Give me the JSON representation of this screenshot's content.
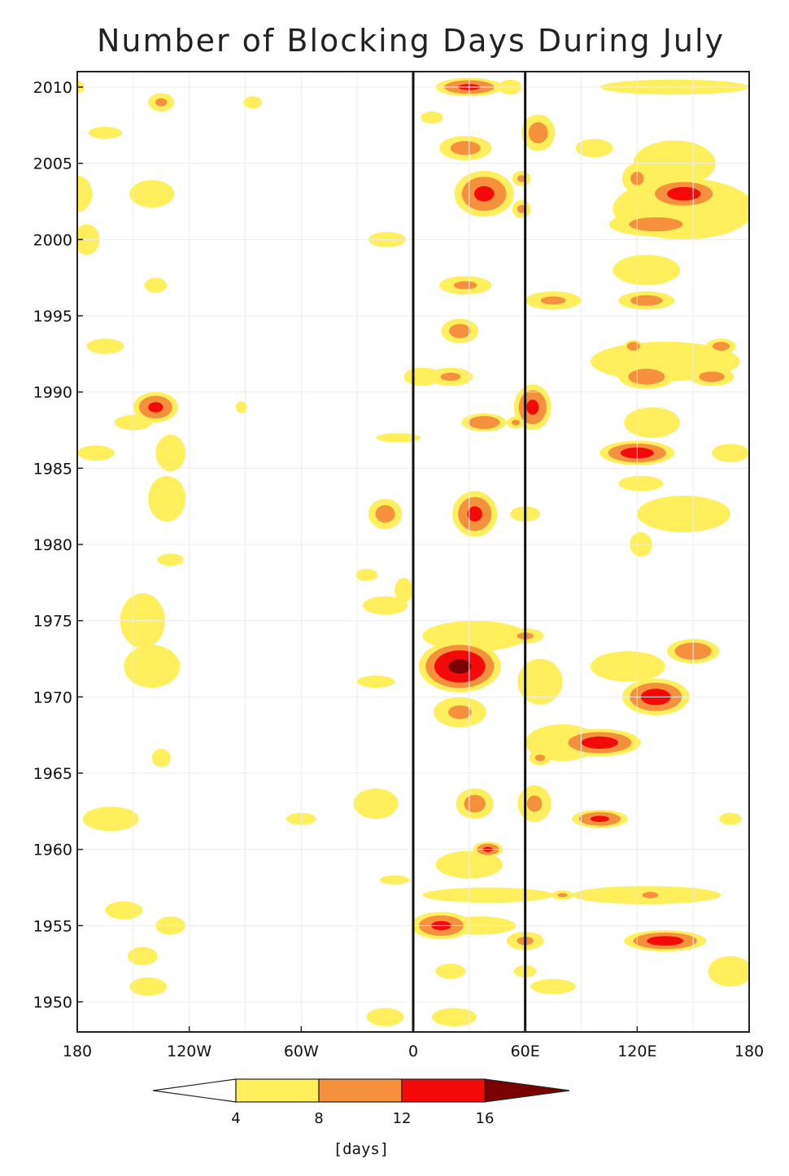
{
  "chart_data": {
    "type": "heatmap",
    "title": "Number of Blocking Days During July",
    "xlabel": "",
    "ylabel": "",
    "x_tick_labels": [
      "180",
      "120W",
      "60W",
      "0",
      "60E",
      "120E",
      "180"
    ],
    "x_tick_values": [
      -180,
      -120,
      -60,
      0,
      60,
      120,
      180
    ],
    "y_tick_labels": [
      "2010",
      "2005",
      "2000",
      "1995",
      "1990",
      "1985",
      "1980",
      "1975",
      "1970",
      "1965",
      "1960",
      "1955",
      "1950"
    ],
    "y_tick_values": [
      2010,
      2005,
      2000,
      1995,
      1990,
      1985,
      1980,
      1975,
      1970,
      1965,
      1960,
      1955,
      1950
    ],
    "xlim": [
      -180,
      180
    ],
    "ylim": [
      1948,
      2011
    ],
    "reference_lines_lon": [
      0,
      60
    ],
    "colorbar": {
      "unit_label": "[days]",
      "levels": [
        "4",
        "8",
        "12",
        "16"
      ],
      "colors": [
        "#ffffff",
        "#ffef5c",
        "#f5913c",
        "#f50a0a",
        "#7a0000"
      ]
    },
    "blobs": [
      {
        "lon": 30,
        "year": 2010,
        "rx": 18,
        "ry": 0.6,
        "days": 13
      },
      {
        "lon": 52,
        "year": 2010,
        "rx": 6,
        "ry": 0.5,
        "days": 5
      },
      {
        "lon": 140,
        "year": 2010,
        "rx": 40,
        "ry": 0.5,
        "days": 5
      },
      {
        "lon": -180,
        "year": 2010,
        "rx": 4,
        "ry": 0.4,
        "days": 5
      },
      {
        "lon": -135,
        "year": 2009,
        "rx": 7,
        "ry": 0.6,
        "days": 9
      },
      {
        "lon": -86,
        "year": 2009,
        "rx": 5,
        "ry": 0.4,
        "days": 5
      },
      {
        "lon": -165,
        "year": 2007,
        "rx": 9,
        "ry": 0.4,
        "days": 5
      },
      {
        "lon": 10,
        "year": 2008,
        "rx": 6,
        "ry": 0.4,
        "days": 5
      },
      {
        "lon": 67,
        "year": 2007,
        "rx": 9,
        "ry": 1.2,
        "days": 10
      },
      {
        "lon": 28,
        "year": 2006,
        "rx": 14,
        "ry": 0.8,
        "days": 10
      },
      {
        "lon": 97,
        "year": 2006,
        "rx": 10,
        "ry": 0.6,
        "days": 5
      },
      {
        "lon": 140,
        "year": 2005,
        "rx": 22,
        "ry": 1.5,
        "days": 6
      },
      {
        "lon": -180,
        "year": 2003,
        "rx": 8,
        "ry": 1.2,
        "days": 5
      },
      {
        "lon": -140,
        "year": 2003,
        "rx": 12,
        "ry": 0.9,
        "days": 6
      },
      {
        "lon": 38,
        "year": 2003,
        "rx": 16,
        "ry": 1.5,
        "days": 13
      },
      {
        "lon": 58,
        "year": 2004,
        "rx": 5,
        "ry": 0.5,
        "days": 9
      },
      {
        "lon": 58,
        "year": 2002,
        "rx": 5,
        "ry": 0.6,
        "days": 9
      },
      {
        "lon": 145,
        "year": 2003,
        "rx": 20,
        "ry": 1.0,
        "days": 14
      },
      {
        "lon": 120,
        "year": 2004,
        "rx": 8,
        "ry": 1.0,
        "days": 9
      },
      {
        "lon": 130,
        "year": 2001,
        "rx": 25,
        "ry": 0.8,
        "days": 10
      },
      {
        "lon": 145,
        "year": 2002,
        "rx": 38,
        "ry": 2.0,
        "days": 5
      },
      {
        "lon": -14,
        "year": 2000,
        "rx": 10,
        "ry": 0.5,
        "days": 5
      },
      {
        "lon": -175,
        "year": 2000,
        "rx": 7,
        "ry": 1.0,
        "days": 5
      },
      {
        "lon": 125,
        "year": 1998,
        "rx": 18,
        "ry": 1.0,
        "days": 6
      },
      {
        "lon": -138,
        "year": 1997,
        "rx": 6,
        "ry": 0.5,
        "days": 5
      },
      {
        "lon": 28,
        "year": 1997,
        "rx": 14,
        "ry": 0.6,
        "days": 9
      },
      {
        "lon": 75,
        "year": 1996,
        "rx": 15,
        "ry": 0.6,
        "days": 9
      },
      {
        "lon": 125,
        "year": 1996,
        "rx": 15,
        "ry": 0.6,
        "days": 10
      },
      {
        "lon": 25,
        "year": 1994,
        "rx": 10,
        "ry": 0.8,
        "days": 10
      },
      {
        "lon": -165,
        "year": 1993,
        "rx": 10,
        "ry": 0.5,
        "days": 5
      },
      {
        "lon": 135,
        "year": 1992,
        "rx": 40,
        "ry": 1.3,
        "days": 6
      },
      {
        "lon": 118,
        "year": 1993,
        "rx": 5,
        "ry": 0.4,
        "days": 12
      },
      {
        "lon": 165,
        "year": 1993,
        "rx": 8,
        "ry": 0.5,
        "days": 10
      },
      {
        "lon": 5,
        "year": 1991,
        "rx": 10,
        "ry": 0.6,
        "days": 5
      },
      {
        "lon": 20,
        "year": 1991,
        "rx": 12,
        "ry": 0.6,
        "days": 9
      },
      {
        "lon": 125,
        "year": 1991,
        "rx": 15,
        "ry": 0.8,
        "days": 11
      },
      {
        "lon": 160,
        "year": 1991,
        "rx": 12,
        "ry": 0.6,
        "days": 10
      },
      {
        "lon": -138,
        "year": 1989,
        "rx": 12,
        "ry": 1.0,
        "days": 13
      },
      {
        "lon": -92,
        "year": 1989,
        "rx": 3,
        "ry": 0.4,
        "days": 5
      },
      {
        "lon": 64,
        "year": 1989,
        "rx": 10,
        "ry": 1.5,
        "days": 13
      },
      {
        "lon": 38,
        "year": 1988,
        "rx": 12,
        "ry": 0.6,
        "days": 12
      },
      {
        "lon": 55,
        "year": 1988,
        "rx": 5,
        "ry": 0.4,
        "days": 9
      },
      {
        "lon": -150,
        "year": 1988,
        "rx": 10,
        "ry": 0.5,
        "days": 5
      },
      {
        "lon": 128,
        "year": 1988,
        "rx": 15,
        "ry": 1.0,
        "days": 6
      },
      {
        "lon": -8,
        "year": 1987,
        "rx": 12,
        "ry": 0.3,
        "days": 5
      },
      {
        "lon": 120,
        "year": 1986,
        "rx": 20,
        "ry": 0.8,
        "days": 14
      },
      {
        "lon": -170,
        "year": 1986,
        "rx": 10,
        "ry": 0.5,
        "days": 5
      },
      {
        "lon": 170,
        "year": 1986,
        "rx": 10,
        "ry": 0.6,
        "days": 5
      },
      {
        "lon": -130,
        "year": 1986,
        "rx": 8,
        "ry": 1.2,
        "days": 5
      },
      {
        "lon": 122,
        "year": 1984,
        "rx": 12,
        "ry": 0.5,
        "days": 5
      },
      {
        "lon": -132,
        "year": 1983,
        "rx": 10,
        "ry": 1.5,
        "days": 5
      },
      {
        "lon": -15,
        "year": 1982,
        "rx": 9,
        "ry": 1.0,
        "days": 10
      },
      {
        "lon": 33,
        "year": 1982,
        "rx": 12,
        "ry": 1.5,
        "days": 13
      },
      {
        "lon": 60,
        "year": 1982,
        "rx": 8,
        "ry": 0.5,
        "days": 6
      },
      {
        "lon": 145,
        "year": 1982,
        "rx": 25,
        "ry": 1.2,
        "days": 5
      },
      {
        "lon": 122,
        "year": 1980,
        "rx": 6,
        "ry": 0.8,
        "days": 6
      },
      {
        "lon": -130,
        "year": 1979,
        "rx": 7,
        "ry": 0.4,
        "days": 5
      },
      {
        "lon": -25,
        "year": 1978,
        "rx": 6,
        "ry": 0.4,
        "days": 5
      },
      {
        "lon": -15,
        "year": 1976,
        "rx": 12,
        "ry": 0.6,
        "days": 6
      },
      {
        "lon": -5,
        "year": 1977,
        "rx": 5,
        "ry": 0.8,
        "days": 5
      },
      {
        "lon": -145,
        "year": 1975,
        "rx": 12,
        "ry": 1.8,
        "days": 7
      },
      {
        "lon": -140,
        "year": 1972,
        "rx": 15,
        "ry": 1.4,
        "days": 7
      },
      {
        "lon": 25,
        "year": 1972,
        "rx": 22,
        "ry": 1.7,
        "days": 17
      },
      {
        "lon": 33,
        "year": 1974,
        "rx": 28,
        "ry": 1.0,
        "days": 5
      },
      {
        "lon": 60,
        "year": 1974,
        "rx": 10,
        "ry": 0.5,
        "days": 9
      },
      {
        "lon": 68,
        "year": 1971,
        "rx": 12,
        "ry": 1.5,
        "days": 5
      },
      {
        "lon": 150,
        "year": 1973,
        "rx": 14,
        "ry": 0.8,
        "days": 12
      },
      {
        "lon": 130,
        "year": 1970,
        "rx": 18,
        "ry": 1.2,
        "days": 14
      },
      {
        "lon": 115,
        "year": 1972,
        "rx": 20,
        "ry": 1.0,
        "days": 5
      },
      {
        "lon": -20,
        "year": 1971,
        "rx": 10,
        "ry": 0.4,
        "days": 5
      },
      {
        "lon": 25,
        "year": 1969,
        "rx": 14,
        "ry": 1.0,
        "days": 9
      },
      {
        "lon": 100,
        "year": 1967,
        "rx": 22,
        "ry": 0.9,
        "days": 14
      },
      {
        "lon": 80,
        "year": 1967,
        "rx": 20,
        "ry": 1.2,
        "days": 5
      },
      {
        "lon": 68,
        "year": 1966,
        "rx": 6,
        "ry": 0.5,
        "days": 9
      },
      {
        "lon": -135,
        "year": 1966,
        "rx": 5,
        "ry": 0.6,
        "days": 5
      },
      {
        "lon": -20,
        "year": 1963,
        "rx": 12,
        "ry": 1.0,
        "days": 5
      },
      {
        "lon": -60,
        "year": 1962,
        "rx": 8,
        "ry": 0.4,
        "days": 5
      },
      {
        "lon": 33,
        "year": 1963,
        "rx": 10,
        "ry": 1.0,
        "days": 10
      },
      {
        "lon": 65,
        "year": 1963,
        "rx": 9,
        "ry": 1.2,
        "days": 9
      },
      {
        "lon": 100,
        "year": 1962,
        "rx": 15,
        "ry": 0.6,
        "days": 13
      },
      {
        "lon": -162,
        "year": 1962,
        "rx": 15,
        "ry": 0.8,
        "days": 6
      },
      {
        "lon": 170,
        "year": 1962,
        "rx": 6,
        "ry": 0.4,
        "days": 5
      },
      {
        "lon": 40,
        "year": 1960,
        "rx": 8,
        "ry": 0.5,
        "days": 13
      },
      {
        "lon": 30,
        "year": 1959,
        "rx": 18,
        "ry": 0.9,
        "days": 5
      },
      {
        "lon": -10,
        "year": 1958,
        "rx": 8,
        "ry": 0.3,
        "days": 5
      },
      {
        "lon": 40,
        "year": 1957,
        "rx": 35,
        "ry": 0.5,
        "days": 5
      },
      {
        "lon": 125,
        "year": 1957,
        "rx": 40,
        "ry": 0.6,
        "days": 6
      },
      {
        "lon": 127,
        "year": 1957,
        "rx": 6,
        "ry": 0.3,
        "days": 12
      },
      {
        "lon": 80,
        "year": 1957,
        "rx": 6,
        "ry": 0.3,
        "days": 9
      },
      {
        "lon": -155,
        "year": 1956,
        "rx": 10,
        "ry": 0.6,
        "days": 6
      },
      {
        "lon": 15,
        "year": 1955,
        "rx": 16,
        "ry": 0.9,
        "days": 13
      },
      {
        "lon": -130,
        "year": 1955,
        "rx": 8,
        "ry": 0.6,
        "days": 5
      },
      {
        "lon": 35,
        "year": 1955,
        "rx": 20,
        "ry": 0.6,
        "days": 5
      },
      {
        "lon": 135,
        "year": 1954,
        "rx": 22,
        "ry": 0.7,
        "days": 14
      },
      {
        "lon": 60,
        "year": 1954,
        "rx": 10,
        "ry": 0.6,
        "days": 9
      },
      {
        "lon": -145,
        "year": 1953,
        "rx": 8,
        "ry": 0.6,
        "days": 6
      },
      {
        "lon": 170,
        "year": 1952,
        "rx": 12,
        "ry": 1.0,
        "days": 5
      },
      {
        "lon": 20,
        "year": 1952,
        "rx": 8,
        "ry": 0.5,
        "days": 5
      },
      {
        "lon": 60,
        "year": 1952,
        "rx": 6,
        "ry": 0.4,
        "days": 7
      },
      {
        "lon": -142,
        "year": 1951,
        "rx": 10,
        "ry": 0.6,
        "days": 6
      },
      {
        "lon": 75,
        "year": 1951,
        "rx": 12,
        "ry": 0.5,
        "days": 5
      },
      {
        "lon": -15,
        "year": 1949,
        "rx": 10,
        "ry": 0.6,
        "days": 5
      },
      {
        "lon": 22,
        "year": 1949,
        "rx": 12,
        "ry": 0.6,
        "days": 5
      }
    ]
  }
}
